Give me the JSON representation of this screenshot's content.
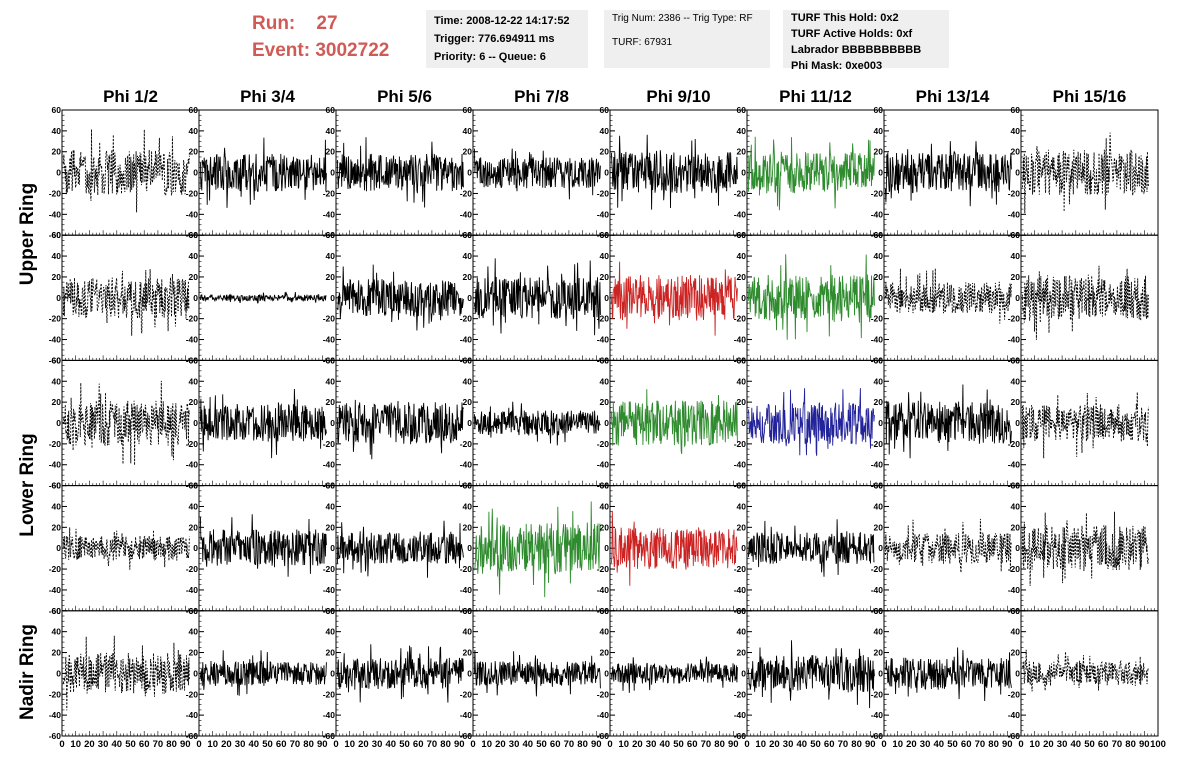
{
  "header": {
    "run_label": "Run:",
    "run_value": "27",
    "event_label": "Event:",
    "event_value": "3002722"
  },
  "info": {
    "time": "Time: 2008-12-22 14:17:52",
    "trigger": "Trigger: 776.694911 ms",
    "priority": "Priority: 6 -- Queue: 6",
    "trig": "Trig Num: 2386 -- Trig Type: RF",
    "turf": "TURF: 67931",
    "turf_hold": "TURF This Hold: 0x2",
    "turf_active": "TURF Active Holds: 0xf",
    "labrador": "Labrador BBBBBBBBBB",
    "phi_mask": "Phi Mask: 0xe003"
  },
  "chart_data": {
    "type": "line",
    "columns": [
      "Phi 1/2",
      "Phi 3/4",
      "Phi 5/6",
      "Phi 7/8",
      "Phi 9/10",
      "Phi 11/12",
      "Phi 13/14",
      "Phi 15/16"
    ],
    "rows": [
      "Upper Ring",
      "Lower Ring",
      "Nadir Ring"
    ],
    "panel_rows": 5,
    "xlim": [
      0,
      100
    ],
    "ylim": [
      -60,
      60
    ],
    "y_ticks": [
      60,
      40,
      20,
      0,
      -20,
      -40,
      -60
    ],
    "x_tick_labels": [
      "0",
      "10",
      "20",
      "30",
      "40",
      "50",
      "60",
      "70",
      "80",
      "90",
      "100"
    ],
    "panel_colors": [
      [
        "#000000",
        "#000000",
        "#000000",
        "#000000",
        "#000000",
        "#2e8b2e",
        "#000000",
        "#000000"
      ],
      [
        "#000000",
        "#000000",
        "#000000",
        "#000000",
        "#cc2222",
        "#2e8b2e",
        "#000000",
        "#000000"
      ],
      [
        "#000000",
        "#000000",
        "#000000",
        "#000000",
        "#2e8b2e",
        "#22229a",
        "#000000",
        "#000000"
      ],
      [
        "#000000",
        "#000000",
        "#000000",
        "#2e8b2e",
        "#cc2222",
        "#000000",
        "#000000",
        "#000000"
      ],
      [
        "#000000",
        "#000000",
        "#000000",
        "#000000",
        "#000000",
        "#000000",
        "#000000",
        "#000000"
      ]
    ],
    "panel_dashed": [
      [
        true,
        false,
        false,
        false,
        false,
        false,
        false,
        true
      ],
      [
        true,
        false,
        false,
        false,
        false,
        false,
        true,
        true
      ],
      [
        true,
        false,
        false,
        false,
        false,
        false,
        false,
        true
      ],
      [
        true,
        false,
        false,
        false,
        false,
        false,
        true,
        true
      ],
      [
        true,
        false,
        false,
        false,
        false,
        false,
        false,
        true
      ]
    ],
    "panel_amplitude": [
      [
        22,
        18,
        18,
        15,
        20,
        20,
        20,
        22
      ],
      [
        20,
        3,
        18,
        20,
        22,
        22,
        15,
        22
      ],
      [
        22,
        18,
        20,
        12,
        22,
        20,
        20,
        18
      ],
      [
        12,
        18,
        15,
        25,
        20,
        15,
        15,
        22
      ],
      [
        20,
        12,
        15,
        12,
        10,
        18,
        15,
        12
      ]
    ]
  }
}
